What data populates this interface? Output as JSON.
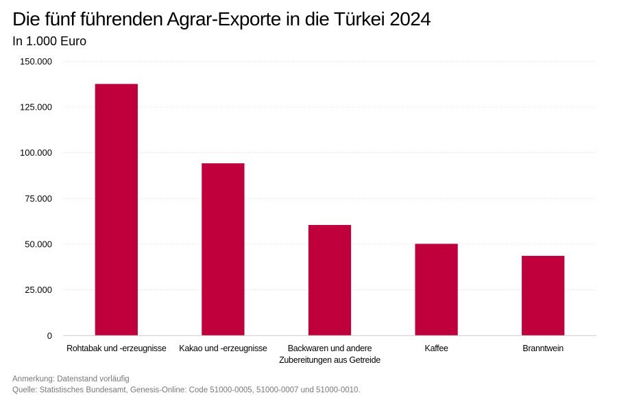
{
  "chart_data": {
    "type": "bar",
    "title": "Die fünf führenden Agrar-Exporte in die Türkei 2024",
    "subtitle": "In 1.000 Euro",
    "categories": [
      "Rohtabak und -erzeugnisse",
      "Kakao und -erzeugnisse",
      "Backwaren und andere Zubereitungen aus Getreide",
      "Kaffee",
      "Branntwein"
    ],
    "values": [
      137600,
      94200,
      60500,
      50200,
      43600
    ],
    "ylim": [
      0,
      150000
    ],
    "yticks": [
      0,
      25000,
      50000,
      75000,
      100000,
      125000,
      150000
    ],
    "ytick_labels": [
      "0",
      "25.000",
      "50.000",
      "75.000",
      "100.000",
      "125.000",
      "150.000"
    ],
    "grid": true,
    "bar_color": "#c0003c",
    "xlabel": "",
    "ylabel": ""
  },
  "notes": {
    "remark": "Anmerkung: Datenstand vorläufig",
    "source": "Quelle: Statistisches Bundesamt, Genesis-Online: Code 51000-0005, 51000-0007 und 51000-0010."
  }
}
